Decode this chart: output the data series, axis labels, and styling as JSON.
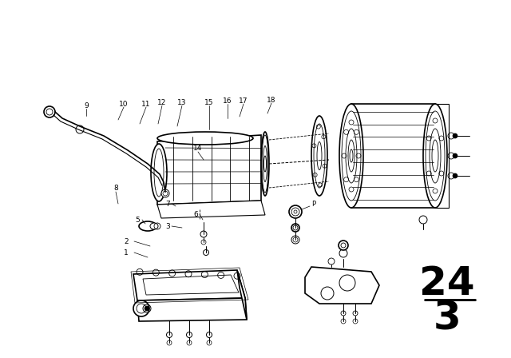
{
  "background_color": "#ffffff",
  "line_color": "#000000",
  "diagram_number_top": "24",
  "diagram_number_bottom": "3",
  "diagram_number_fontsize": 36
}
